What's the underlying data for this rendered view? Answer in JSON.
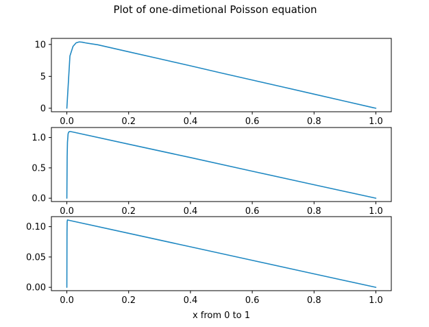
{
  "figure": {
    "title": "Plot of one-dimetional Poisson equation"
  },
  "chart_data": [
    {
      "type": "line",
      "xlabel": "",
      "ylabel": "",
      "xlim": [
        -0.05,
        1.05
      ],
      "ylim": [
        -0.55,
        10.95
      ],
      "xticks": [
        0.0,
        0.2,
        0.4,
        0.6,
        0.8,
        1.0
      ],
      "xtick_labels": [
        "0.0",
        "0.2",
        "0.4",
        "0.6",
        "0.8",
        "1.0"
      ],
      "yticks": [
        0,
        5,
        10
      ],
      "ytick_labels": [
        "0",
        "5",
        "10"
      ],
      "grid": false,
      "line_color": "#1f88c2",
      "series": [
        {
          "x": [
            0.0,
            0.01,
            0.02,
            0.03,
            0.04,
            0.05,
            0.06,
            0.1,
            0.2,
            0.3,
            0.4,
            0.5,
            0.6,
            0.7,
            0.8,
            0.9,
            0.99,
            1.0
          ],
          "y": [
            0.0,
            8.2,
            9.7,
            10.25,
            10.4,
            10.35,
            10.25,
            9.95,
            8.85,
            7.75,
            6.65,
            5.52,
            4.42,
            3.32,
            2.21,
            1.1,
            0.1,
            0.0
          ]
        }
      ]
    },
    {
      "type": "line",
      "xlabel": "",
      "ylabel": "",
      "xlim": [
        -0.05,
        1.05
      ],
      "ylim": [
        -0.055,
        1.165
      ],
      "xticks": [
        0.0,
        0.2,
        0.4,
        0.6,
        0.8,
        1.0
      ],
      "xtick_labels": [
        "0.0",
        "0.2",
        "0.4",
        "0.6",
        "0.8",
        "1.0"
      ],
      "yticks": [
        0.0,
        0.5,
        1.0
      ],
      "ytick_labels": [
        "0.0",
        "0.5",
        "1.0"
      ],
      "grid": false,
      "line_color": "#1f88c2",
      "series": [
        {
          "x": [
            0.0,
            0.001,
            0.002,
            0.004,
            0.006,
            0.01,
            0.02,
            0.2,
            0.4,
            0.6,
            0.8,
            1.0
          ],
          "y": [
            0.0,
            0.68,
            0.92,
            1.06,
            1.09,
            1.1,
            1.09,
            0.89,
            0.67,
            0.445,
            0.222,
            0.0
          ]
        }
      ]
    },
    {
      "type": "line",
      "xlabel": "x from 0 to 1",
      "ylabel": "",
      "xlim": [
        -0.05,
        1.05
      ],
      "ylim": [
        -0.0055,
        0.1165
      ],
      "xticks": [
        0.0,
        0.2,
        0.4,
        0.6,
        0.8,
        1.0
      ],
      "xtick_labels": [
        "0.0",
        "0.2",
        "0.4",
        "0.6",
        "0.8",
        "1.0"
      ],
      "yticks": [
        0.0,
        0.05,
        0.1
      ],
      "ytick_labels": [
        "0.00",
        "0.05",
        "0.10"
      ],
      "grid": false,
      "line_color": "#1f88c2",
      "series": [
        {
          "x": [
            0.0,
            0.0005,
            0.001,
            0.002,
            0.2,
            0.4,
            0.6,
            0.8,
            1.0
          ],
          "y": [
            0.0,
            0.09,
            0.108,
            0.111,
            0.089,
            0.0668,
            0.0445,
            0.0222,
            0.0
          ]
        }
      ]
    }
  ]
}
